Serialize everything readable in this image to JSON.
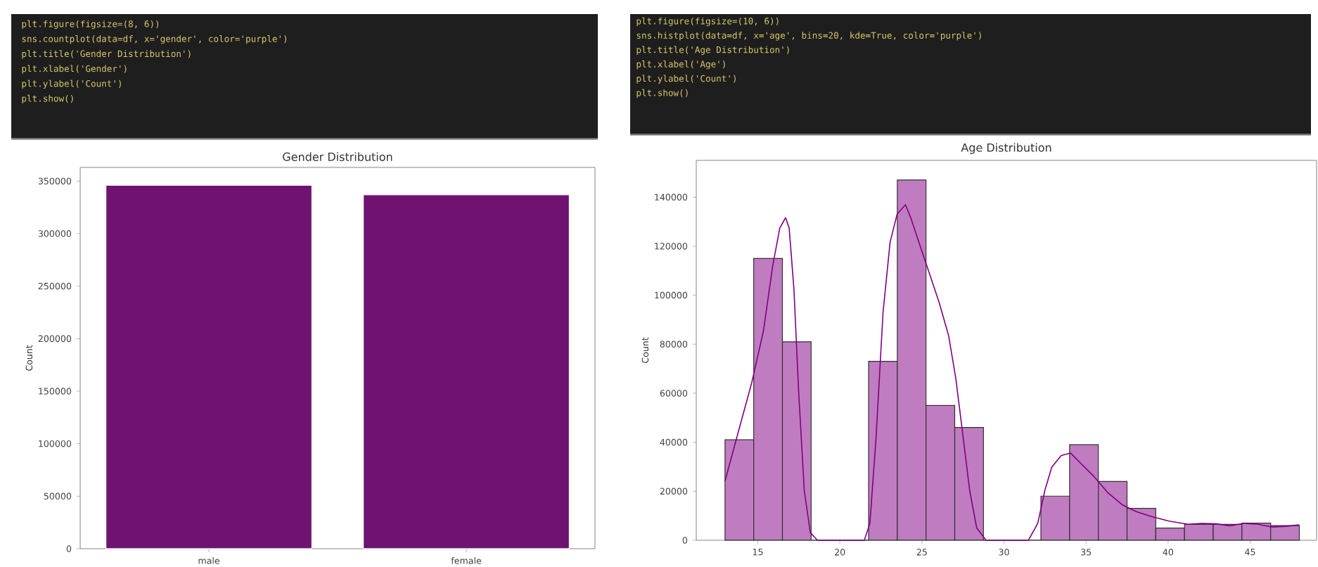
{
  "chart_data": [
    {
      "type": "bar",
      "title": "Gender Distribution",
      "ylabel": "Count",
      "categories": [
        "male",
        "female"
      ],
      "values": [
        346000,
        337000
      ],
      "color": "#6f1270",
      "ylim": [
        0,
        363000
      ],
      "yticks": [
        0,
        50000,
        100000,
        150000,
        200000,
        250000,
        300000,
        350000
      ],
      "annotations": [
        "plt.figure(figsize=(8, 6))",
        "sns.countplot(data=df, x='gender', color='purple')",
        "plt.title('Gender Distribution')",
        "plt.xlabel('Gender')",
        "plt.ylabel('Count')",
        "plt.show()"
      ]
    },
    {
      "type": "histogram",
      "title": "Age Distribution",
      "ylabel": "Count",
      "color": "#c07cc0",
      "bins": [
        13,
        14.75,
        16.5,
        18.25,
        20,
        21.75,
        23.5,
        25.25,
        27,
        28.75,
        30.5,
        32.25,
        34,
        35.75,
        37.5,
        39.25,
        41,
        42.75,
        44.5,
        46.25,
        48
      ],
      "values": [
        41000,
        115000,
        81000,
        0,
        0,
        73000,
        147000,
        55000,
        46000,
        0,
        0,
        18000,
        39000,
        24000,
        13000,
        5000,
        6500,
        6500,
        7000,
        6000
      ],
      "series": [
        {
          "type": "line",
          "color": "#800080",
          "x": [
            13.0,
            13.77,
            14.63,
            15.34,
            15.91,
            16.34,
            16.69,
            16.91,
            17.2,
            17.49,
            17.83,
            18.2,
            18.63,
            21.49,
            21.83,
            22.2,
            22.63,
            23.06,
            23.49,
            24.0,
            24.34,
            24.91,
            25.49,
            26.06,
            26.63,
            27.06,
            27.49,
            27.91,
            28.34,
            28.91,
            31.49,
            32.06,
            32.49,
            32.91,
            33.49,
            34.06,
            34.63,
            35.49,
            36.34,
            37.2,
            38.06,
            38.91,
            40.06,
            41.2,
            42.06,
            42.91,
            43.77,
            44.63,
            45.49,
            46.34,
            47.2,
            48.0
          ],
          "values": [
            24100,
            43200,
            64300,
            85300,
            112100,
            127400,
            131600,
            127400,
            102500,
            60400,
            20300,
            3100,
            0,
            0,
            6900,
            41300,
            92900,
            121600,
            133100,
            136900,
            131200,
            119700,
            108200,
            96800,
            83400,
            66200,
            43200,
            20300,
            5000,
            0,
            0,
            6900,
            20300,
            29800,
            34600,
            35600,
            31700,
            26000,
            19300,
            14500,
            11700,
            9800,
            7800,
            6500,
            6900,
            6700,
            5900,
            6900,
            6500,
            5400,
            5700,
            6300
          ]
        }
      ],
      "xlim": [
        11.25,
        49.05
      ],
      "xticks": [
        15,
        20,
        25,
        30,
        35,
        40,
        45
      ],
      "ylim": [
        0,
        155000
      ],
      "yticks": [
        0,
        20000,
        40000,
        60000,
        80000,
        100000,
        120000,
        140000
      ],
      "annotations": [
        "plt.figure(figsize=(10, 6))",
        "sns.histplot(data=df, x='age', bins=20, kde=True, color='purple')",
        "plt.title('Age Distribution')",
        "plt.xlabel('Age')",
        "plt.ylabel('Count')",
        "plt.show()"
      ]
    }
  ]
}
